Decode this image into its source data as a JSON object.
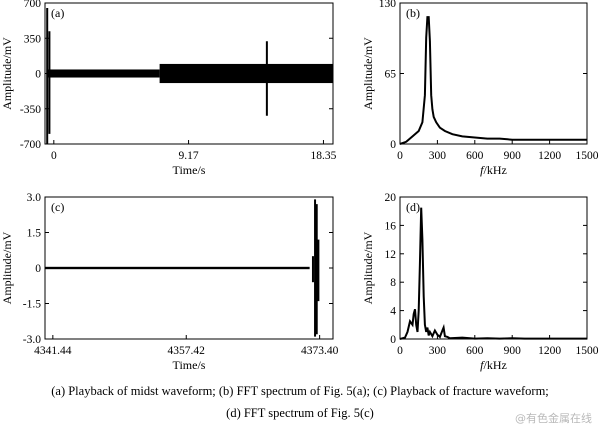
{
  "captions": {
    "line1": "(a) Playback of midst waveform; (b) FFT spectrum of Fig. 5(a); (c) Playback of fracture waveform;",
    "line2": "(d) FFT spectrum of Fig. 5(c)"
  },
  "watermark": "@有色金属在线",
  "chart_data": [
    {
      "panel": "(a)",
      "type": "line",
      "xlabel": "Time/s",
      "ylabel": "Amplitude/mV",
      "xticks": [
        "0",
        "9.17",
        "18.35"
      ],
      "xtick_values": [
        0,
        9.17,
        18.35
      ],
      "xlim": [
        -0.6,
        19.0
      ],
      "yticks": [
        "700",
        "350",
        "0",
        "-350",
        "-700"
      ],
      "ytick_values": [
        700,
        350,
        0,
        -350,
        -700
      ],
      "ylim": [
        -700,
        700
      ],
      "grid": false,
      "envelope": [
        {
          "x_start": -0.5,
          "x_end": 7.2,
          "amplitude": 40
        },
        {
          "x_start": 7.2,
          "x_end": 19.0,
          "amplitude": 95
        }
      ],
      "spikes": [
        {
          "x": -0.45,
          "max": 650,
          "min": -700
        },
        {
          "x": -0.3,
          "max": 420,
          "min": -600
        },
        {
          "x": 14.5,
          "max": 320,
          "min": -420
        }
      ]
    },
    {
      "panel": "(b)",
      "type": "line",
      "xlabel": "f/kHz",
      "ylabel": "Amplitude/mV",
      "xticks": [
        "0",
        "300",
        "600",
        "900",
        "1200",
        "1500"
      ],
      "xtick_values": [
        0,
        300,
        600,
        900,
        1200,
        1500
      ],
      "xlim": [
        0,
        1500
      ],
      "yticks": [
        "130",
        "65",
        "0"
      ],
      "ytick_values": [
        130,
        65,
        0
      ],
      "ylim": [
        0,
        130
      ],
      "grid": false,
      "x": [
        0,
        50,
        100,
        150,
        180,
        200,
        210,
        220,
        230,
        240,
        250,
        260,
        270,
        290,
        320,
        360,
        420,
        500,
        600,
        700,
        800,
        900,
        1000,
        1200,
        1400,
        1500
      ],
      "y": [
        0,
        2,
        7,
        12,
        20,
        45,
        98,
        117,
        117,
        95,
        45,
        32,
        25,
        20,
        15,
        12,
        9,
        7,
        6,
        5,
        5,
        4,
        4,
        4,
        4,
        4
      ]
    },
    {
      "panel": "(c)",
      "type": "line",
      "xlabel": "Time/s",
      "ylabel": "Amplitude/mV",
      "xticks": [
        "4341.44",
        "4357.42",
        "4373.40"
      ],
      "xtick_values": [
        4341.44,
        4357.42,
        4373.4
      ],
      "xlim": [
        4340.5,
        4375.0
      ],
      "yticks": [
        "3.0",
        "1.5",
        "0",
        "-1.5",
        "-3.0"
      ],
      "ytick_values": [
        3.0,
        1.5,
        0,
        -1.5,
        -3.0
      ],
      "ylim": [
        -3.0,
        3.0
      ],
      "grid": false,
      "envelope": [
        {
          "x_start": 4340.5,
          "x_end": 4372.2,
          "amplitude": 0.05
        }
      ],
      "spikes": [
        {
          "x": 4372.6,
          "max": 0.5,
          "min": -0.6
        },
        {
          "x": 4372.85,
          "max": 2.9,
          "min": -2.9
        },
        {
          "x": 4373.05,
          "max": 2.7,
          "min": -2.8
        },
        {
          "x": 4373.25,
          "max": 1.2,
          "min": -1.4
        }
      ]
    },
    {
      "panel": "(d)",
      "type": "line",
      "xlabel": "f/kHz",
      "ylabel": "Amplitude/mV",
      "xticks": [
        "0",
        "300",
        "600",
        "900",
        "1200",
        "1500"
      ],
      "xtick_values": [
        0,
        300,
        600,
        900,
        1200,
        1500
      ],
      "xlim": [
        0,
        1500
      ],
      "yticks": [
        "20",
        "16",
        "12",
        "8",
        "4",
        "0"
      ],
      "ytick_values": [
        20,
        16,
        12,
        8,
        4,
        0
      ],
      "ylim": [
        0,
        20
      ],
      "grid": false,
      "x": [
        0,
        40,
        60,
        80,
        100,
        110,
        120,
        130,
        140,
        150,
        160,
        170,
        180,
        190,
        200,
        210,
        220,
        230,
        240,
        260,
        280,
        300,
        320,
        340,
        350,
        360,
        380,
        400,
        500,
        600,
        700,
        800,
        900,
        1000,
        1200,
        1300,
        1400,
        1500
      ],
      "y": [
        0,
        0.2,
        1.0,
        2.5,
        2.0,
        3.5,
        4.2,
        2.0,
        1.0,
        4.0,
        10.5,
        18.5,
        14.0,
        6.0,
        2.0,
        1.0,
        1.6,
        0.5,
        1.0,
        0.4,
        1.2,
        0.6,
        0.3,
        1.2,
        1.6,
        0.4,
        0.3,
        0.1,
        0.2,
        0.05,
        0.1,
        0.05,
        0.1,
        0.05,
        0.05,
        0.05,
        0.05,
        0.05
      ]
    }
  ]
}
